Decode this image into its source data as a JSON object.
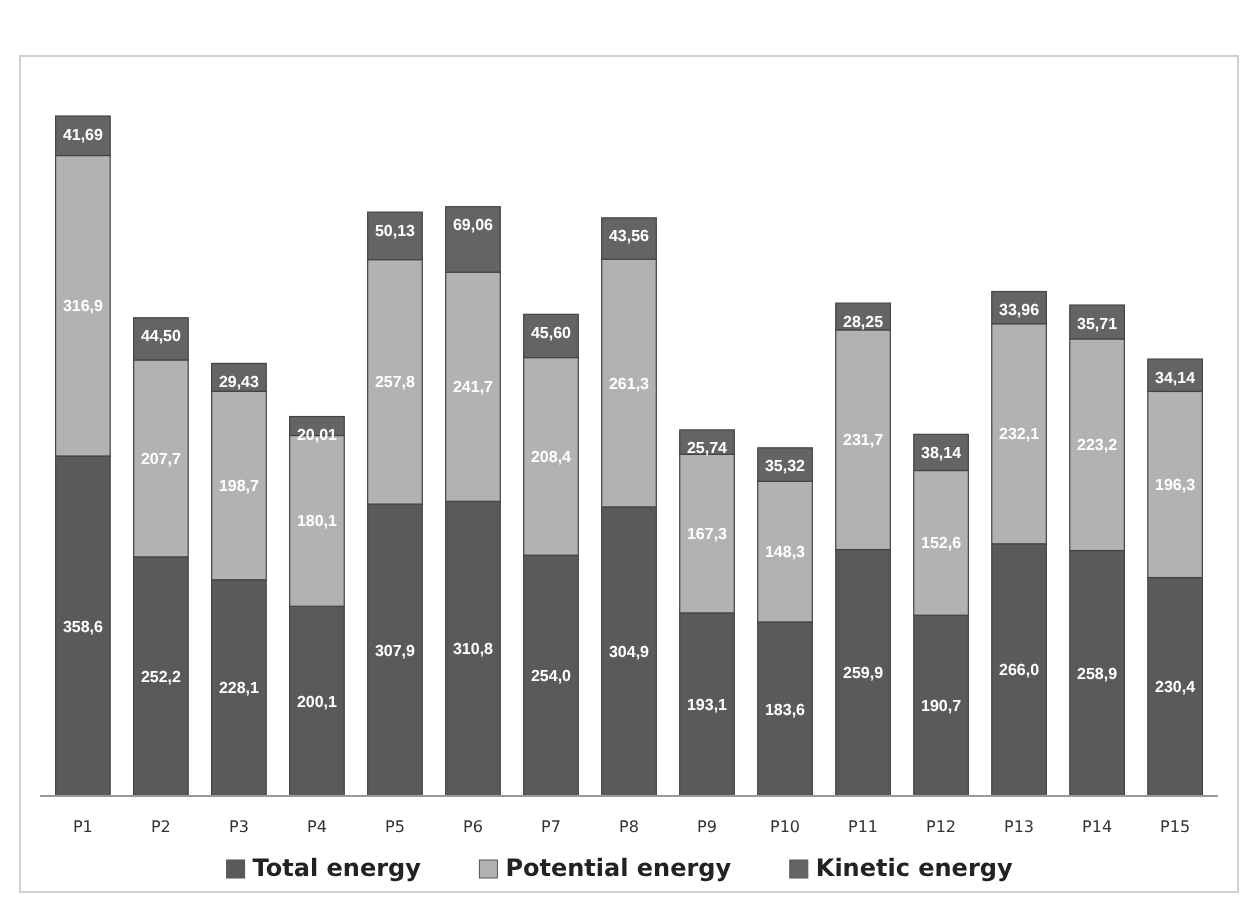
{
  "chart_data": {
    "type": "bar",
    "stacked": true,
    "legend": "bottom",
    "categories": [
      "P1",
      "P2",
      "P3",
      "P4",
      "P5",
      "P6",
      "P7",
      "P8",
      "P9",
      "P10",
      "P11",
      "P12",
      "P13",
      "P14",
      "P15"
    ],
    "series": [
      {
        "name": "Total energy",
        "color": "#5a5a5a",
        "values": [
          358.6,
          252.2,
          228.1,
          200.1,
          307.9,
          310.8,
          254.0,
          304.9,
          193.1,
          183.6,
          259.9,
          190.7,
          266.0,
          258.9,
          230.4
        ],
        "value_labels": [
          "358,6",
          "252,2",
          "228,1",
          "200,1",
          "307,9",
          "310,8",
          "254,0",
          "304,9",
          "193,1",
          "183,6",
          "259,9",
          "190,7",
          "266,0",
          "258,9",
          "230,4"
        ]
      },
      {
        "name": "Potential energy",
        "color": "#b2b2b2",
        "values": [
          316.9,
          207.7,
          198.7,
          180.1,
          257.8,
          241.7,
          208.4,
          261.3,
          167.3,
          148.3,
          231.7,
          152.6,
          232.1,
          223.2,
          196.3
        ],
        "value_labels": [
          "316,9",
          "207,7",
          "198,7",
          "180,1",
          "257,8",
          "241,7",
          "208,4",
          "261,3",
          "167,3",
          "148,3",
          "231,7",
          "152,6",
          "232,1",
          "223,2",
          "196,3"
        ]
      },
      {
        "name": "Kinetic energy",
        "color": "#646464",
        "values": [
          41.69,
          44.5,
          29.43,
          20.01,
          50.13,
          69.06,
          45.6,
          43.56,
          25.74,
          35.32,
          28.25,
          38.14,
          33.96,
          35.71,
          34.14
        ],
        "value_labels": [
          "41,69",
          "44,50",
          "29,43",
          "20,01",
          "50,13",
          "69,06",
          "45,60",
          "43,56",
          "25,74",
          "35,32",
          "28,25",
          "38,14",
          "33,96",
          "35,71",
          "34,14"
        ]
      }
    ]
  }
}
